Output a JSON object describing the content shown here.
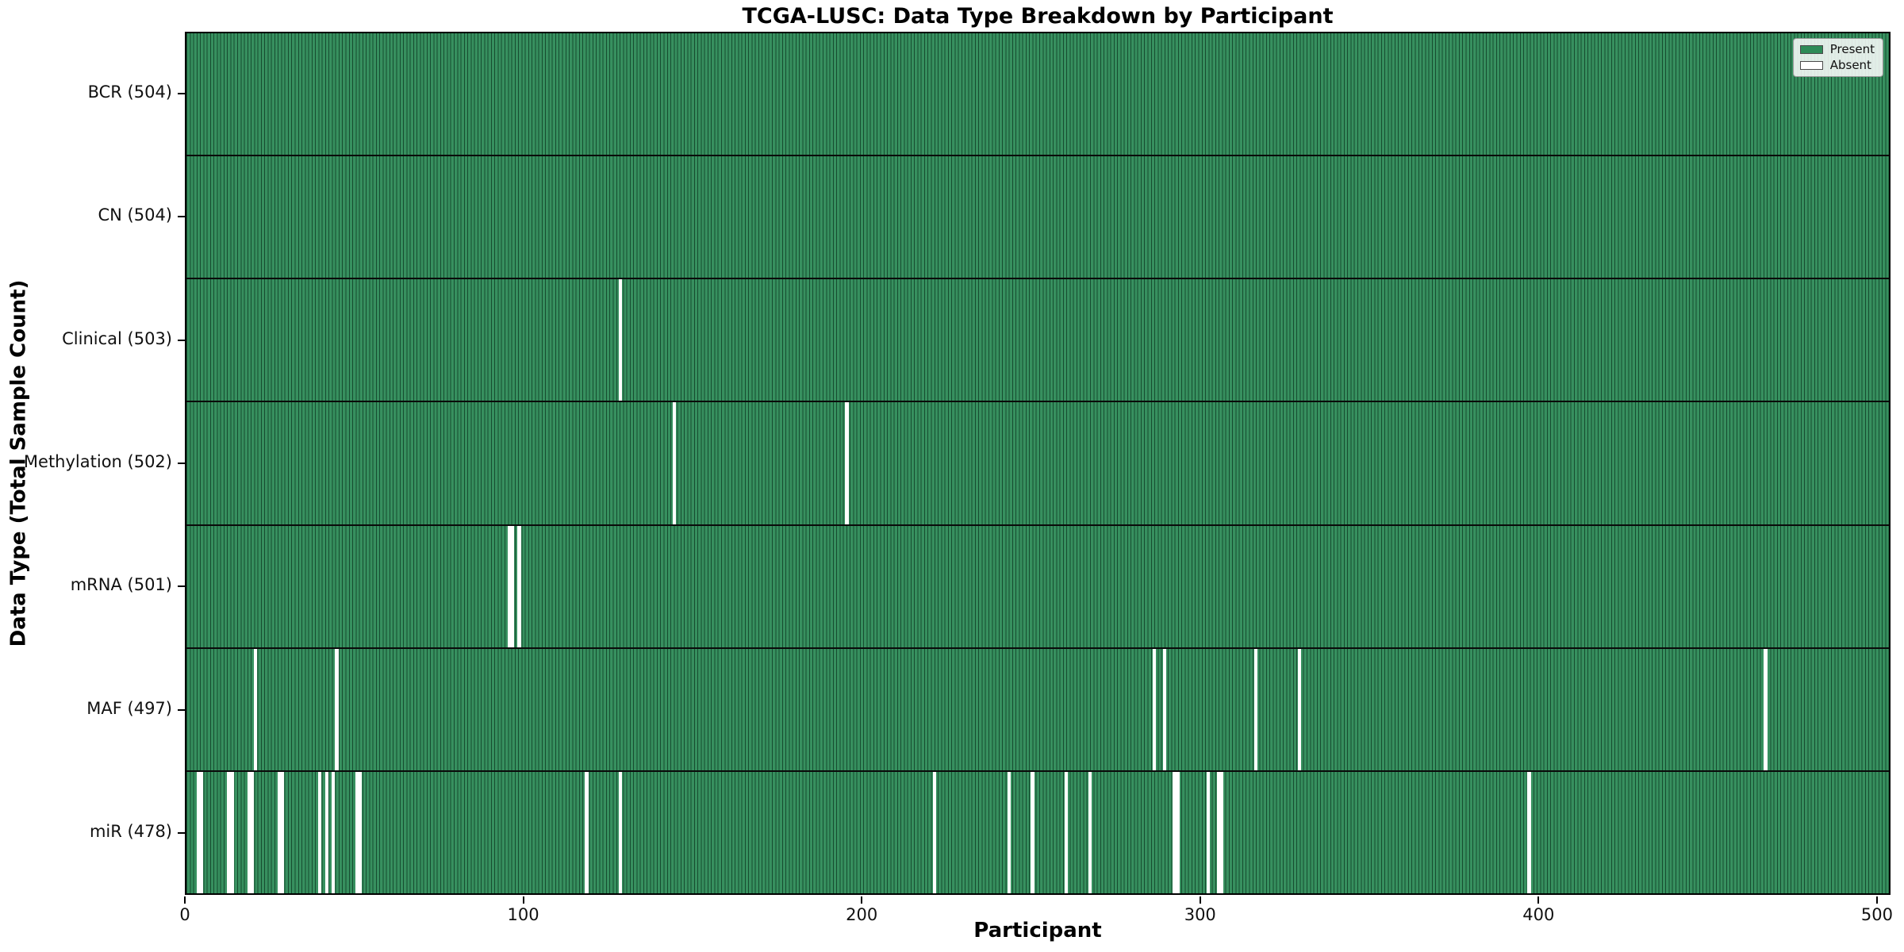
{
  "chart_data": {
    "type": "heatmap",
    "title": "TCGA-LUSC: Data Type Breakdown by Participant",
    "xlabel": "Participant",
    "ylabel": "Data Type (Total Sample Count)",
    "x_ticks": [
      0,
      100,
      200,
      300,
      400,
      500
    ],
    "x_max": 504,
    "n_participants": 504,
    "present_color": "#37905f",
    "cell_edge_color": "rgba(5,40,22,0.65)",
    "absent_color": "#ffffff",
    "legend": [
      {
        "label": "Present",
        "color": "#2e8b57"
      },
      {
        "label": "Absent",
        "color": "#ffffff"
      }
    ],
    "rows": [
      {
        "label": "BCR (504)",
        "data_type": "BCR",
        "total": 504,
        "absent_participants": []
      },
      {
        "label": "CN (504)",
        "data_type": "CN",
        "total": 504,
        "absent_participants": []
      },
      {
        "label": "Clinical (503)",
        "data_type": "Clinical",
        "total": 503,
        "absent_participants": [
          128
        ]
      },
      {
        "label": "Methylation (502)",
        "data_type": "Methylation",
        "total": 502,
        "absent_participants": [
          144,
          195
        ]
      },
      {
        "label": "mRNA (501)",
        "data_type": "mRNA",
        "total": 501,
        "absent_participants": [
          95,
          96,
          98
        ]
      },
      {
        "label": "MAF (497)",
        "data_type": "MAF",
        "total": 497,
        "absent_participants": [
          20,
          44,
          286,
          289,
          316,
          329,
          467
        ]
      },
      {
        "label": "miR (478)",
        "data_type": "miR",
        "total": 478,
        "absent_participants": [
          3,
          4,
          12,
          13,
          18,
          19,
          27,
          28,
          39,
          41,
          43,
          50,
          51,
          118,
          128,
          221,
          243,
          250,
          260,
          267,
          292,
          293,
          302,
          305,
          306,
          397
        ]
      }
    ]
  }
}
